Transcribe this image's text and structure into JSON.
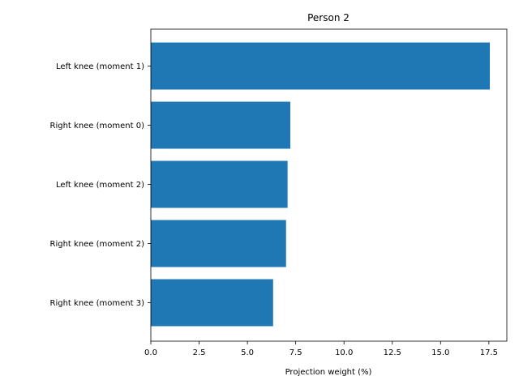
{
  "chart_data": {
    "type": "bar",
    "orientation": "horizontal",
    "title": "Person 2",
    "xlabel": "Projection weight (%)",
    "ylabel": "",
    "categories": [
      "Left knee (moment 1)",
      "Right knee (moment 0)",
      "Left knee (moment 2)",
      "Right knee (moment 2)",
      "Right knee (moment 3)"
    ],
    "values": [
      17.55,
      7.22,
      7.08,
      7.0,
      6.33
    ],
    "xlim": [
      0,
      18.43
    ],
    "xticks": [
      0.0,
      2.5,
      5.0,
      7.5,
      10.0,
      12.5,
      15.0,
      17.5
    ],
    "xtick_labels": [
      "0.0",
      "2.5",
      "5.0",
      "7.5",
      "10.0",
      "12.5",
      "15.0",
      "17.5"
    ],
    "bar_color": "#1f77b4",
    "grid": false,
    "legend": "none"
  }
}
